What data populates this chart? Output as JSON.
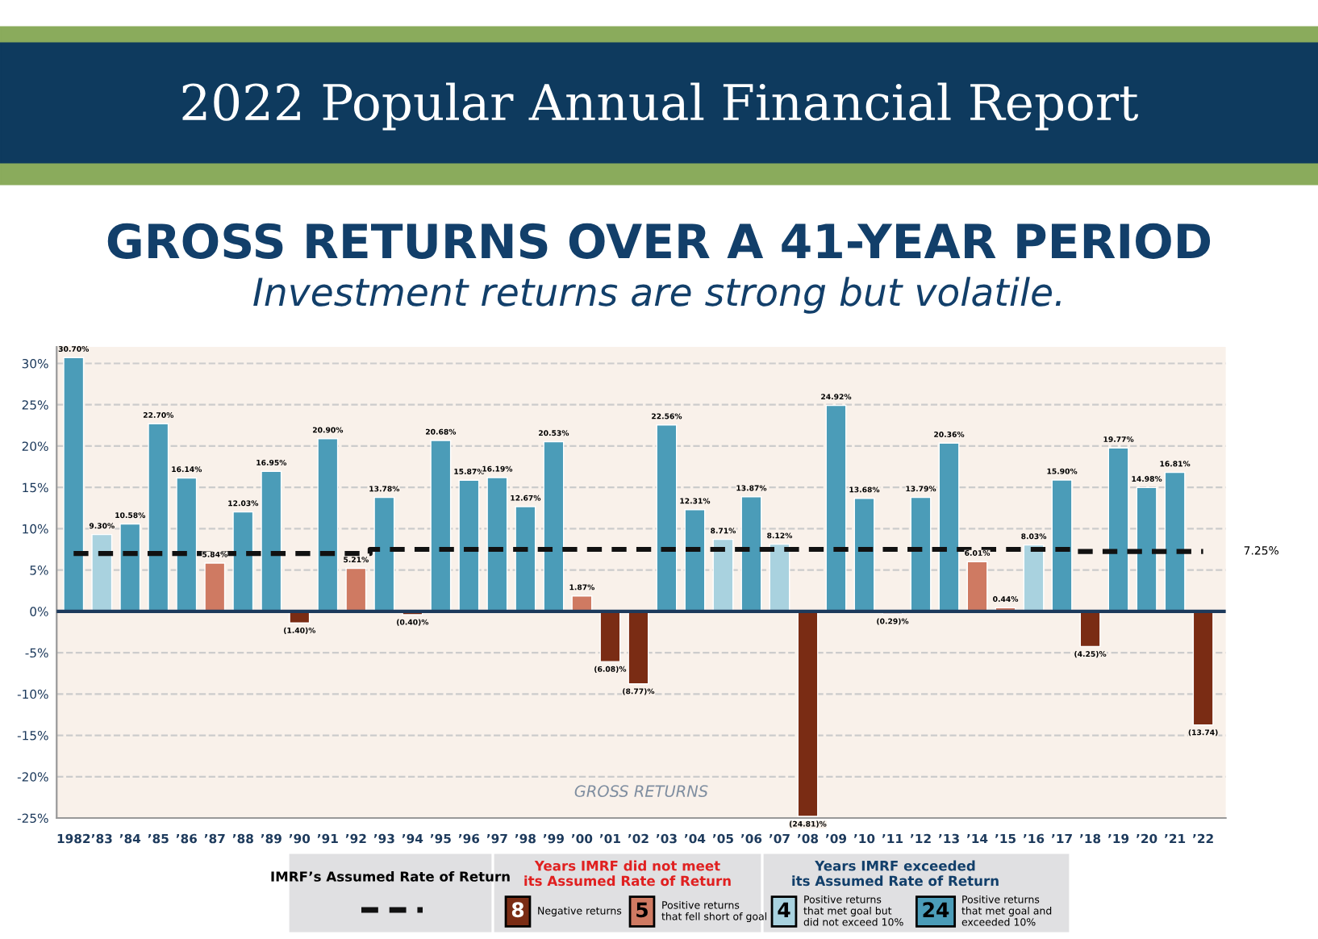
{
  "chart_data": {
    "type": "bar",
    "title": "2022 Popular Annual Financial Report",
    "subtitle": "GROSS RETURNS OVER A 41-YEAR PERIOD",
    "categories": [
      "1982",
      "’83",
      "’84",
      "’85",
      "’86",
      "’87",
      "’88",
      "’89",
      "’90",
      "’91",
      "’92",
      "’93",
      "’94",
      "’95",
      "’96",
      "’97",
      "’98",
      "’99",
      "’00",
      "’01",
      "’02",
      "’03",
      "’04",
      "’05",
      "’06",
      "’07",
      "’08",
      "’09",
      "’10",
      "’11",
      "’12",
      "’13",
      "’14",
      "’15",
      "’16",
      "’17",
      "’18",
      "’19",
      "’20",
      "’21",
      "’22"
    ],
    "series": [
      {
        "values": [
          30.7,
          9.3,
          10.58,
          22.7,
          16.14,
          5.84,
          12.03,
          16.95,
          -1.4,
          20.9,
          5.21,
          13.78,
          -0.4,
          20.68,
          15.87,
          16.19,
          12.67,
          20.53,
          1.87,
          -6.08,
          -8.77,
          22.56,
          12.31,
          8.71,
          13.87,
          8.12,
          -24.81,
          24.92,
          13.68,
          -0.29,
          13.79,
          20.36,
          6.01,
          0.44,
          8.03,
          15.9,
          -4.25,
          19.77,
          14.98,
          16.81,
          -13.74
        ],
        "colors": [
          "#4b9cb8",
          "#a9d2df",
          "#4b9cb8",
          "#4b9cb8",
          "#4b9cb8",
          "#cf7a62",
          "#4b9cb8",
          "#4b9cb8",
          "#7a2c14",
          "#4b9cb8",
          "#cf7a62",
          "#4b9cb8",
          "#7a2c14",
          "#4b9cb8",
          "#4b9cb8",
          "#4b9cb8",
          "#4b9cb8",
          "#4b9cb8",
          "#cf7a62",
          "#7a2c14",
          "#7a2c14",
          "#4b9cb8",
          "#4b9cb8",
          "#a9d2df",
          "#4b9cb8",
          "#a9d2df",
          "#7a2c14",
          "#4b9cb8",
          "#4b9cb8",
          "#7a2c14",
          "#4b9cb8",
          "#4b9cb8",
          "#cf7a62",
          "#cf7a62",
          "#a9d2df",
          "#4b9cb8",
          "#7a2c14",
          "#4b9cb8",
          "#4b9cb8",
          "#4b9cb8",
          "#7a2c14"
        ],
        "value_labels": [
          "30.70%",
          "9.30%",
          "10.58%",
          "22.70%",
          "16.14%",
          "5.84%",
          "12.03%",
          "16.95%",
          "(1.40)%",
          "20.90%",
          "5.21%",
          "13.78%",
          "(0.40)%",
          "20.68%",
          "15.87%",
          "16.19%",
          "12.67%",
          "20.53%",
          "1.87%",
          "(6.08)%",
          "(8.77)%",
          "22.56%",
          "12.31%",
          "8.71%",
          "13.87%",
          "8.12%",
          "(24.81)%",
          "24.92%",
          "13.68%",
          "(0.29)%",
          "13.79%",
          "20.36%",
          "6.01%",
          "0.44%",
          "8.03%",
          "15.90%",
          "(4.25)%",
          "19.77%",
          "14.98%",
          "16.81%",
          "(13.74)"
        ]
      },
      {
        "type": "step",
        "color": "#111111",
        "line_style": "dashed",
        "values": [
          7,
          7,
          7,
          7,
          7,
          7,
          7,
          7,
          7,
          7,
          7,
          7.5,
          7.5,
          7.5,
          7.5,
          7.5,
          7.5,
          7.5,
          7.5,
          7.5,
          7.5,
          7.5,
          7.5,
          7.5,
          7.5,
          7.5,
          7.5,
          7.5,
          7.5,
          7.5,
          7.5,
          7.5,
          7.5,
          7.5,
          7.5,
          7.5,
          7.25,
          7.25,
          7.25,
          7.25,
          7.25
        ]
      }
    ],
    "ylim": [
      -25,
      32
    ],
    "yticks": [
      {
        "value": -25,
        "label": "-25%"
      },
      {
        "value": -20,
        "label": "-20%"
      },
      {
        "value": -15,
        "label": "-15%"
      },
      {
        "value": -10,
        "label": "-10%"
      },
      {
        "value": -5,
        "label": "-5%"
      },
      {
        "value": 0,
        "label": "0%"
      },
      {
        "value": 5,
        "label": "5%"
      },
      {
        "value": 10,
        "label": "10%"
      },
      {
        "value": 15,
        "label": "15%"
      },
      {
        "value": 20,
        "label": "20%"
      },
      {
        "value": 25,
        "label": "25%"
      },
      {
        "value": 30,
        "label": "30%"
      }
    ],
    "grid": "y",
    "annotations": [
      "Investment returns are strong but volatile.",
      "7.25%",
      "GROSS RETURNS",
      "IMRF’s Assumed Rate of Return",
      "Years IMRF did not meet its Assumed Rate of Return",
      "8",
      "Negative returns",
      "5",
      "Positive returns that fell short of goal",
      "Years IMRF exceeded its Assumed Rate of Return",
      "4",
      "Positive returns that met goal but did not exceed 10%",
      "24",
      "Positive returns that met goal and exceeded 10%"
    ]
  }
}
